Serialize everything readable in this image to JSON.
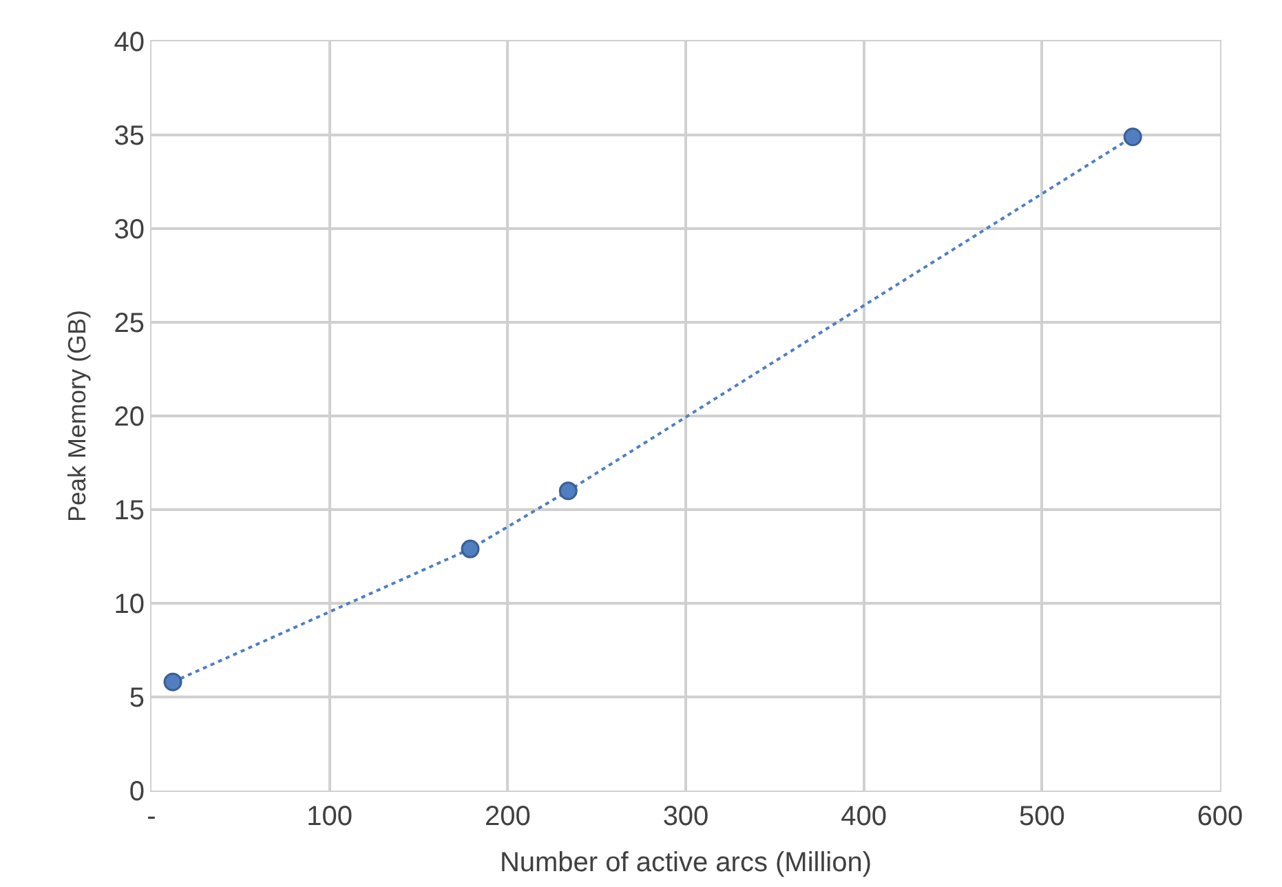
{
  "chart_data": {
    "type": "line",
    "xlabel": "Number of active arcs (Million)",
    "ylabel": "Peak Memory (GB)",
    "x": [
      12,
      179,
      234,
      551
    ],
    "series": [
      {
        "color": "#4f7fc1",
        "values": [
          5.8,
          12.9,
          16.0,
          34.9
        ]
      }
    ],
    "xlim": [
      0,
      600
    ],
    "xticks": [
      {
        "value": 0,
        "label": "-"
      },
      100,
      200,
      300,
      400,
      500,
      600
    ],
    "ylim": [
      0,
      40
    ],
    "yticks": [
      0,
      5,
      10,
      15,
      20,
      25,
      30,
      35,
      40
    ],
    "grid": true,
    "marker": "circle",
    "line_style": "dotted"
  }
}
